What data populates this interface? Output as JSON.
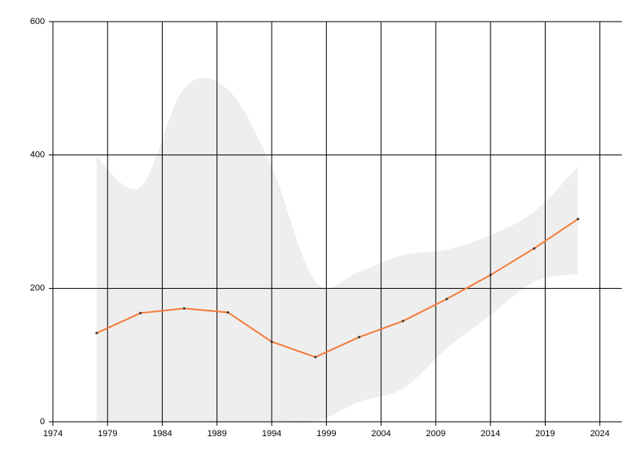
{
  "chart_data": {
    "type": "line",
    "x": [
      1978,
      1982,
      1986,
      1990,
      1994,
      1998,
      2002,
      2006,
      2010,
      2014,
      2018,
      2022
    ],
    "band": {
      "upper": [
        397,
        352,
        500,
        498,
        382,
        210,
        225,
        250,
        258,
        280,
        315,
        383
      ],
      "lower": [
        0,
        0,
        0,
        0,
        0,
        0,
        30,
        50,
        110,
        160,
        210,
        222
      ],
      "color": "#eeeeee"
    },
    "series": [
      {
        "values": [
          133,
          163,
          170,
          164,
          120,
          97,
          127,
          151,
          184,
          220,
          260,
          304
        ],
        "color": "#f47b3a",
        "marker_color": "#333333"
      }
    ],
    "xlim": [
      1974,
      2026
    ],
    "ylim": [
      0,
      600
    ],
    "xticks": [
      1974,
      1979,
      1984,
      1989,
      1994,
      1999,
      2004,
      2009,
      2014,
      2019,
      2024
    ],
    "yticks": [
      0,
      200,
      400,
      600
    ],
    "grid": true
  }
}
